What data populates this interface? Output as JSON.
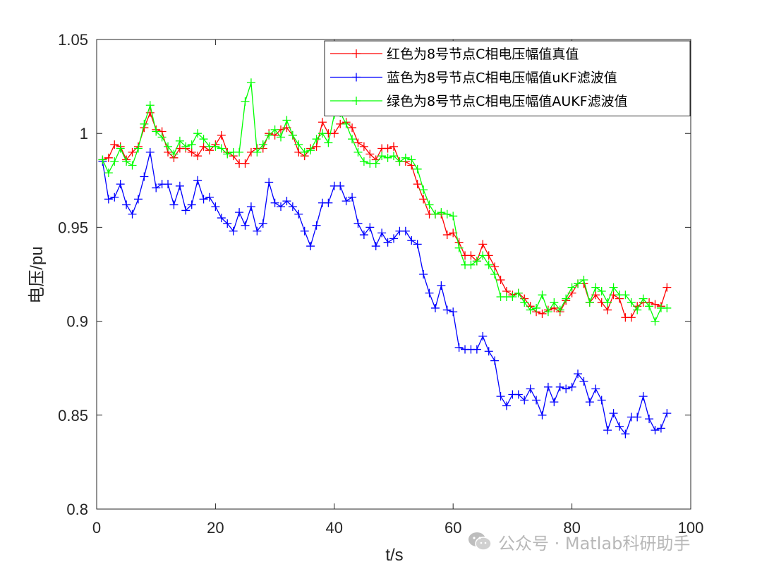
{
  "chart_data": {
    "type": "line",
    "title": "",
    "xlabel": "t/s",
    "ylabel": "电压/pu",
    "xlim": [
      0,
      100
    ],
    "ylim": [
      0.8,
      1.05
    ],
    "xticks": [
      "0",
      "20",
      "40",
      "60",
      "80",
      "100"
    ],
    "yticks": [
      "0.8",
      "0.85",
      "0.9",
      "0.95",
      "1",
      "1.05"
    ],
    "legend_position": "top-right",
    "grid": false,
    "series": [
      {
        "name": "红色为8号节点C相电压幅值真值",
        "color": "#ff0000",
        "marker": "plus",
        "x": [
          1,
          2,
          3,
          4,
          5,
          6,
          7,
          8,
          9,
          10,
          11,
          12,
          13,
          14,
          15,
          16,
          17,
          18,
          19,
          20,
          21,
          22,
          23,
          24,
          25,
          26,
          27,
          28,
          29,
          30,
          31,
          32,
          33,
          34,
          35,
          36,
          37,
          38,
          39,
          40,
          41,
          42,
          43,
          44,
          45,
          46,
          47,
          48,
          49,
          50,
          51,
          52,
          53,
          54,
          55,
          56,
          57,
          58,
          59,
          60,
          61,
          62,
          63,
          64,
          65,
          66,
          67,
          68,
          69,
          70,
          71,
          72,
          73,
          74,
          75,
          76,
          77,
          78,
          79,
          80,
          81,
          82,
          83,
          84,
          85,
          86,
          87,
          88,
          89,
          90,
          91,
          92,
          93,
          94,
          95,
          96
        ],
        "values": [
          0.986,
          0.987,
          0.994,
          0.993,
          0.986,
          0.99,
          0.993,
          1.003,
          1.011,
          1.002,
          1.001,
          0.99,
          0.987,
          0.992,
          0.992,
          0.99,
          0.988,
          0.993,
          0.991,
          0.994,
          0.999,
          0.99,
          0.988,
          0.984,
          0.984,
          0.99,
          0.992,
          0.992,
          1.0,
          0.999,
          1.002,
          1.003,
          0.999,
          0.99,
          0.988,
          0.992,
          0.993,
          1.006,
          1.0,
          1.0,
          1.005,
          1.006,
          1.003,
          0.995,
          0.993,
          0.989,
          0.986,
          0.992,
          0.992,
          0.993,
          0.985,
          0.985,
          0.983,
          0.973,
          0.965,
          0.957,
          0.957,
          0.957,
          0.946,
          0.947,
          0.942,
          0.935,
          0.935,
          0.932,
          0.941,
          0.935,
          0.929,
          0.922,
          0.916,
          0.914,
          0.915,
          0.912,
          0.908,
          0.905,
          0.904,
          0.906,
          0.907,
          0.905,
          0.911,
          0.915,
          0.92,
          0.92,
          0.91,
          0.914,
          0.91,
          0.906,
          0.914,
          0.912,
          0.902,
          0.902,
          0.908,
          0.91,
          0.91,
          0.909,
          0.908,
          0.918
        ]
      },
      {
        "name": "蓝色为8号节点C相电压幅值uKF滤波值",
        "color": "#0000ff",
        "marker": "plus",
        "x": [
          1,
          2,
          3,
          4,
          5,
          6,
          7,
          8,
          9,
          10,
          11,
          12,
          13,
          14,
          15,
          16,
          17,
          18,
          19,
          20,
          21,
          22,
          23,
          24,
          25,
          26,
          27,
          28,
          29,
          30,
          31,
          32,
          33,
          34,
          35,
          36,
          37,
          38,
          39,
          40,
          41,
          42,
          43,
          44,
          45,
          46,
          47,
          48,
          49,
          50,
          51,
          52,
          53,
          54,
          55,
          56,
          57,
          58,
          59,
          60,
          61,
          62,
          63,
          64,
          65,
          66,
          67,
          68,
          69,
          70,
          71,
          72,
          73,
          74,
          75,
          76,
          77,
          78,
          79,
          80,
          81,
          82,
          83,
          84,
          85,
          86,
          87,
          88,
          89,
          90,
          91,
          92,
          93,
          94,
          95,
          96
        ],
        "values": [
          0.985,
          0.965,
          0.966,
          0.973,
          0.962,
          0.957,
          0.965,
          0.977,
          0.99,
          0.971,
          0.973,
          0.973,
          0.962,
          0.972,
          0.959,
          0.962,
          0.975,
          0.965,
          0.966,
          0.961,
          0.955,
          0.952,
          0.948,
          0.958,
          0.951,
          0.961,
          0.948,
          0.952,
          0.974,
          0.963,
          0.961,
          0.964,
          0.961,
          0.957,
          0.948,
          0.94,
          0.951,
          0.963,
          0.963,
          0.972,
          0.972,
          0.964,
          0.966,
          0.952,
          0.946,
          0.95,
          0.94,
          0.947,
          0.942,
          0.944,
          0.948,
          0.948,
          0.943,
          0.941,
          0.925,
          0.915,
          0.907,
          0.919,
          0.906,
          0.905,
          0.886,
          0.885,
          0.885,
          0.885,
          0.892,
          0.884,
          0.879,
          0.86,
          0.855,
          0.861,
          0.861,
          0.858,
          0.864,
          0.858,
          0.85,
          0.865,
          0.857,
          0.865,
          0.864,
          0.865,
          0.872,
          0.868,
          0.857,
          0.864,
          0.858,
          0.842,
          0.851,
          0.844,
          0.84,
          0.849,
          0.849,
          0.86,
          0.848,
          0.842,
          0.843,
          0.851
        ]
      },
      {
        "name": "绿色为8号节点C相电压幅值AUKF滤波值",
        "color": "#00ff00",
        "marker": "plus",
        "x": [
          1,
          2,
          3,
          4,
          5,
          6,
          7,
          8,
          9,
          10,
          11,
          12,
          13,
          14,
          15,
          16,
          17,
          18,
          19,
          20,
          21,
          22,
          23,
          24,
          25,
          26,
          27,
          28,
          29,
          30,
          31,
          32,
          33,
          34,
          35,
          36,
          37,
          38,
          39,
          40,
          41,
          42,
          43,
          44,
          45,
          46,
          47,
          48,
          49,
          50,
          51,
          52,
          53,
          54,
          55,
          56,
          57,
          58,
          59,
          60,
          61,
          62,
          63,
          64,
          65,
          66,
          67,
          68,
          69,
          70,
          71,
          72,
          73,
          74,
          75,
          76,
          77,
          78,
          79,
          80,
          81,
          82,
          83,
          84,
          85,
          86,
          87,
          88,
          89,
          90,
          91,
          92,
          93,
          94,
          95,
          96
        ],
        "values": [
          0.986,
          0.979,
          0.985,
          0.992,
          0.985,
          0.983,
          0.992,
          1.005,
          1.015,
          1.001,
          0.998,
          0.993,
          0.989,
          0.996,
          0.993,
          0.994,
          1.0,
          0.997,
          0.993,
          0.993,
          0.992,
          0.989,
          0.99,
          0.99,
          1.017,
          1.027,
          0.99,
          0.994,
          0.999,
          1.002,
          0.998,
          1.007,
          0.999,
          0.994,
          0.99,
          0.991,
          0.997,
          1.0,
          0.995,
          1.01,
          1.011,
          1.005,
          0.997,
          0.99,
          0.985,
          0.984,
          0.984,
          0.988,
          0.987,
          0.988,
          0.985,
          0.987,
          0.986,
          0.981,
          0.97,
          0.962,
          0.957,
          0.958,
          0.957,
          0.956,
          0.939,
          0.93,
          0.93,
          0.932,
          0.935,
          0.93,
          0.925,
          0.913,
          0.913,
          0.913,
          0.915,
          0.91,
          0.906,
          0.907,
          0.914,
          0.905,
          0.91,
          0.906,
          0.912,
          0.918,
          0.92,
          0.922,
          0.91,
          0.918,
          0.916,
          0.91,
          0.918,
          0.914,
          0.914,
          0.91,
          0.906,
          0.912,
          0.908,
          0.9,
          0.907,
          0.907
        ]
      }
    ]
  },
  "watermark": {
    "text": "公众号 · Matlab科研助手",
    "icon": "wechat-icon"
  }
}
